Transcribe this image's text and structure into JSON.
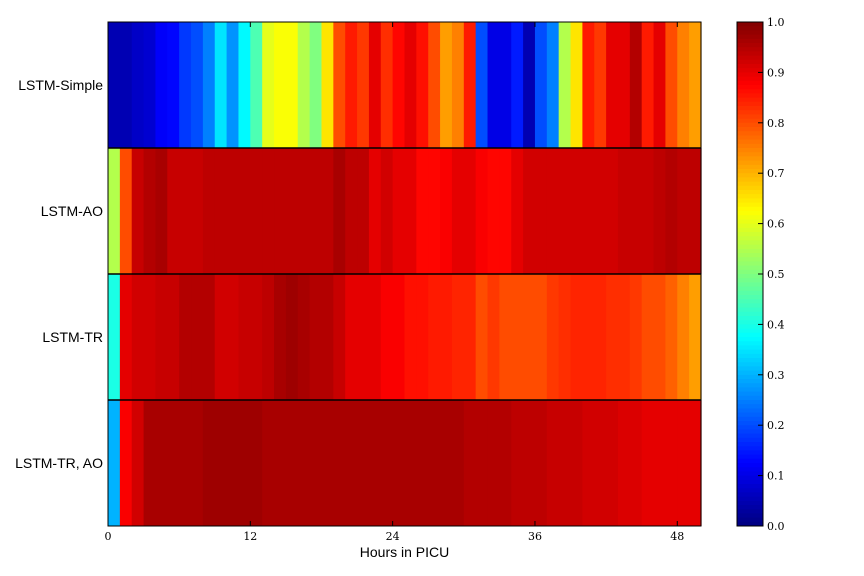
{
  "chart_data": {
    "type": "heatmap",
    "colormap": "jet",
    "title": "",
    "xlabel": "Hours in PICU",
    "ylabel": "",
    "x_ticks": [
      0,
      12,
      24,
      36,
      48
    ],
    "x_range": [
      0,
      50
    ],
    "colorbar": {
      "range": [
        0.0,
        1.0
      ],
      "ticks": [
        0.0,
        0.1,
        0.2,
        0.3,
        0.4,
        0.5,
        0.6,
        0.7,
        0.8,
        0.9,
        1.0
      ],
      "tick_labels": [
        "0.0",
        "0.1",
        "0.2",
        "0.3",
        "0.4",
        "0.5",
        "0.6",
        "0.7",
        "0.8",
        "0.9",
        "1.0"
      ]
    },
    "rows": [
      {
        "label": "LSTM-Simple",
        "values": [
          0.05,
          0.05,
          0.07,
          0.08,
          0.12,
          0.13,
          0.18,
          0.2,
          0.25,
          0.35,
          0.27,
          0.37,
          0.45,
          0.6,
          0.62,
          0.62,
          0.55,
          0.5,
          0.65,
          0.8,
          0.85,
          0.82,
          0.9,
          0.83,
          0.87,
          0.9,
          0.86,
          0.8,
          0.72,
          0.75,
          0.85,
          0.2,
          0.1,
          0.1,
          0.15,
          0.05,
          0.2,
          0.25,
          0.55,
          0.65,
          0.85,
          0.82,
          0.9,
          0.9,
          0.95,
          0.85,
          0.9,
          0.8,
          0.75,
          0.72
        ]
      },
      {
        "label": "LSTM-AO",
        "values": [
          0.55,
          0.8,
          0.93,
          0.95,
          0.96,
          0.93,
          0.93,
          0.93,
          0.94,
          0.94,
          0.94,
          0.94,
          0.94,
          0.94,
          0.94,
          0.94,
          0.94,
          0.94,
          0.94,
          0.96,
          0.94,
          0.94,
          0.9,
          0.92,
          0.9,
          0.9,
          0.87,
          0.87,
          0.88,
          0.9,
          0.9,
          0.88,
          0.87,
          0.87,
          0.9,
          0.92,
          0.92,
          0.92,
          0.92,
          0.92,
          0.92,
          0.92,
          0.92,
          0.93,
          0.93,
          0.93,
          0.94,
          0.95,
          0.94,
          0.94
        ]
      },
      {
        "label": "LSTM-TR",
        "values": [
          0.4,
          0.9,
          0.92,
          0.92,
          0.93,
          0.93,
          0.95,
          0.95,
          0.95,
          0.92,
          0.92,
          0.93,
          0.93,
          0.94,
          0.96,
          0.97,
          0.96,
          0.95,
          0.95,
          0.93,
          0.9,
          0.9,
          0.9,
          0.88,
          0.88,
          0.86,
          0.86,
          0.85,
          0.85,
          0.84,
          0.84,
          0.8,
          0.82,
          0.8,
          0.8,
          0.8,
          0.8,
          0.82,
          0.83,
          0.84,
          0.84,
          0.84,
          0.83,
          0.83,
          0.82,
          0.8,
          0.8,
          0.78,
          0.75,
          0.72
        ]
      },
      {
        "label": "LSTM-TR, AO",
        "values": [
          0.3,
          0.88,
          0.92,
          0.96,
          0.96,
          0.96,
          0.96,
          0.96,
          0.97,
          0.97,
          0.97,
          0.97,
          0.97,
          0.96,
          0.96,
          0.96,
          0.96,
          0.96,
          0.96,
          0.96,
          0.96,
          0.96,
          0.96,
          0.96,
          0.96,
          0.96,
          0.96,
          0.96,
          0.96,
          0.96,
          0.95,
          0.95,
          0.95,
          0.95,
          0.94,
          0.94,
          0.94,
          0.93,
          0.93,
          0.93,
          0.92,
          0.92,
          0.92,
          0.91,
          0.91,
          0.9,
          0.9,
          0.9,
          0.9,
          0.9
        ]
      }
    ]
  }
}
